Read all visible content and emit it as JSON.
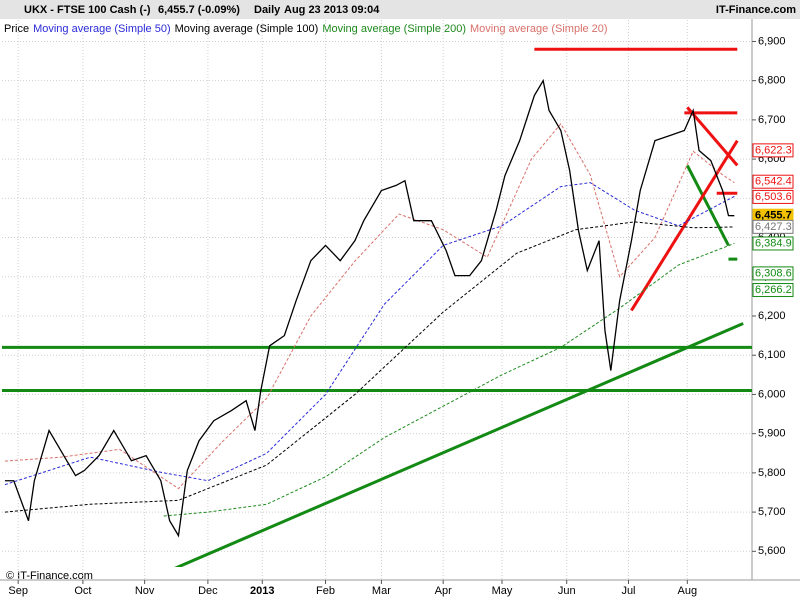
{
  "chart_data": {
    "type": "line",
    "title": "UKX - FTSE 100 Cash (-)",
    "price_text": "6,455.7 (-0.09%)",
    "interval": "Daily",
    "timestamp": "Aug 23 2013 09:04",
    "source": "IT-Finance.com",
    "watermark": "© IT-Finance.com",
    "xlim": [
      0,
      255
    ],
    "xticks": [
      {
        "value": 5.5,
        "label": "Sep"
      },
      {
        "value": 27.5,
        "label": "Oct"
      },
      {
        "value": 48.5,
        "label": "Nov"
      },
      {
        "value": 70,
        "label": "Dec"
      },
      {
        "value": 88.5,
        "label": "2013"
      },
      {
        "value": 110,
        "label": "Feb"
      },
      {
        "value": 129,
        "label": "Mar"
      },
      {
        "value": 150,
        "label": "Apr"
      },
      {
        "value": 170,
        "label": "May"
      },
      {
        "value": 192,
        "label": "Jun"
      },
      {
        "value": 213,
        "label": "Jul"
      },
      {
        "value": 233,
        "label": "Aug"
      }
    ],
    "ylim": [
      5560,
      6970
    ],
    "yticks": [
      {
        "value": 5600,
        "label": "5,600"
      },
      {
        "value": 5700,
        "label": "5,700"
      },
      {
        "value": 5800,
        "label": "5,800"
      },
      {
        "value": 5900,
        "label": "5,900"
      },
      {
        "value": 6000,
        "label": "6,000"
      },
      {
        "value": 6100,
        "label": "6,100"
      },
      {
        "value": 6200,
        "label": "6,200"
      },
      {
        "value": 6300,
        "label": "6,300"
      },
      {
        "value": 6400,
        "label": "6,400"
      },
      {
        "value": 6500,
        "label": "6,500"
      },
      {
        "value": 6600,
        "label": "6,600"
      },
      {
        "value": 6700,
        "label": "6,700"
      },
      {
        "value": 6800,
        "label": "6,800"
      },
      {
        "value": 6900,
        "label": "6,900"
      }
    ],
    "grid": true,
    "series": [
      {
        "name": "Price",
        "color": "#000000",
        "dash": false,
        "width": 1.3,
        "x": [
          1,
          4,
          9,
          11,
          16,
          20,
          25,
          28,
          33,
          38,
          44,
          49,
          54,
          57,
          60,
          63,
          67,
          72,
          78,
          83,
          86,
          88,
          91,
          96,
          100,
          105,
          110,
          115,
          120,
          123,
          129,
          134,
          137,
          140,
          146,
          151,
          154,
          159,
          163,
          168,
          171,
          176,
          181,
          184,
          186,
          190,
          193,
          196,
          199,
          203,
          205,
          207,
          210,
          214,
          217,
          222,
          227,
          232,
          235,
          237,
          241,
          245,
          247,
          249
        ],
        "values": [
          5780,
          5780,
          5678,
          5780,
          5908,
          5857,
          5793,
          5806,
          5844,
          5908,
          5831,
          5844,
          5780,
          5678,
          5640,
          5806,
          5882,
          5933,
          5959,
          5984,
          5908,
          6010,
          6124,
          6150,
          6239,
          6341,
          6380,
          6341,
          6392,
          6443,
          6520,
          6533,
          6545,
          6443,
          6443,
          6367,
          6303,
          6303,
          6341,
          6469,
          6558,
          6647,
          6762,
          6800,
          6724,
          6673,
          6571,
          6418,
          6316,
          6392,
          6163,
          6061,
          6239,
          6392,
          6520,
          6647,
          6660,
          6673,
          6724,
          6622,
          6596,
          6520,
          6456,
          6455.7
        ]
      },
      {
        "name": "Moving average (Simple 50)",
        "color": "#2b2bd9",
        "dash": true,
        "width": 1,
        "x": [
          1,
          30,
          55,
          70,
          90,
          110,
          130,
          150,
          170,
          190,
          200,
          215,
          230,
          249
        ],
        "values": [
          5770,
          5840,
          5800,
          5780,
          5850,
          6000,
          6230,
          6380,
          6430,
          6530,
          6540,
          6470,
          6430,
          6505
        ]
      },
      {
        "name": "Moving average (Simple 100)",
        "color": "#000000",
        "dash": true,
        "width": 1,
        "x": [
          1,
          30,
          60,
          90,
          120,
          150,
          175,
          195,
          215,
          235,
          249
        ],
        "values": [
          5700,
          5720,
          5730,
          5820,
          6000,
          6210,
          6360,
          6420,
          6440,
          6425,
          6427
        ]
      },
      {
        "name": "Moving average (Simple 200)",
        "color": "#1e8a1e",
        "dash": true,
        "width": 1,
        "x": [
          55,
          70,
          90,
          110,
          130,
          150,
          170,
          190,
          210,
          230,
          249
        ],
        "values": [
          5690,
          5700,
          5720,
          5790,
          5890,
          5970,
          6050,
          6120,
          6220,
          6330,
          6385
        ]
      },
      {
        "name": "Moving average (Simple 20)",
        "color": "#d9706a",
        "dash": true,
        "width": 1,
        "x": [
          1,
          20,
          40,
          60,
          75,
          90,
          105,
          120,
          135,
          150,
          165,
          180,
          190,
          200,
          210,
          222,
          235,
          245,
          249
        ],
        "values": [
          5830,
          5840,
          5860,
          5760,
          5880,
          5990,
          6200,
          6340,
          6460,
          6420,
          6350,
          6600,
          6690,
          6560,
          6300,
          6400,
          6620,
          6560,
          6540
        ]
      }
    ],
    "trendlines": [
      {
        "color": "#138a13",
        "x": [
          0,
          255
        ],
        "y": [
          6120,
          6120
        ]
      },
      {
        "color": "#138a13",
        "x": [
          0,
          255
        ],
        "y": [
          6010,
          6010
        ]
      },
      {
        "color": "#138a13",
        "x": [
          49,
          252
        ],
        "y": [
          5525,
          6181
        ]
      },
      {
        "color": "#138a13",
        "x": [
          233,
          247
        ],
        "y": [
          6584,
          6380
        ]
      },
      {
        "color": "#138a13",
        "x": [
          247,
          250
        ],
        "y": [
          6345,
          6345
        ]
      },
      {
        "color": "#ee1111",
        "x": [
          181,
          250
        ],
        "y": [
          6880,
          6880
        ]
      },
      {
        "color": "#ee1111",
        "x": [
          232,
          250
        ],
        "y": [
          6718,
          6718
        ]
      },
      {
        "color": "#ee1111",
        "x": [
          214,
          250
        ],
        "y": [
          6214,
          6647
        ]
      },
      {
        "color": "#ee1111",
        "x": [
          233,
          250
        ],
        "y": [
          6732,
          6584
        ]
      },
      {
        "color": "#ee1111",
        "x": [
          243,
          250
        ],
        "y": [
          6513,
          6513
        ]
      }
    ],
    "level_tags": {
      "values": [
        6622.3,
        6542.4,
        6503.6,
        6455.7,
        6427.3,
        6384.9,
        6308.6,
        6266.2
      ],
      "value_labels": [
        "6,622.3",
        "6,542.4",
        "6,503.6",
        "6,455.7",
        "6,427.3",
        "6,384.9",
        "6,308.6",
        "6,266.2"
      ],
      "colors": [
        "#ee1111",
        "#ee1111",
        "#ee1111",
        "#f2c200",
        "#777777",
        "#138a13",
        "#138a13",
        "#138a13"
      ]
    }
  }
}
